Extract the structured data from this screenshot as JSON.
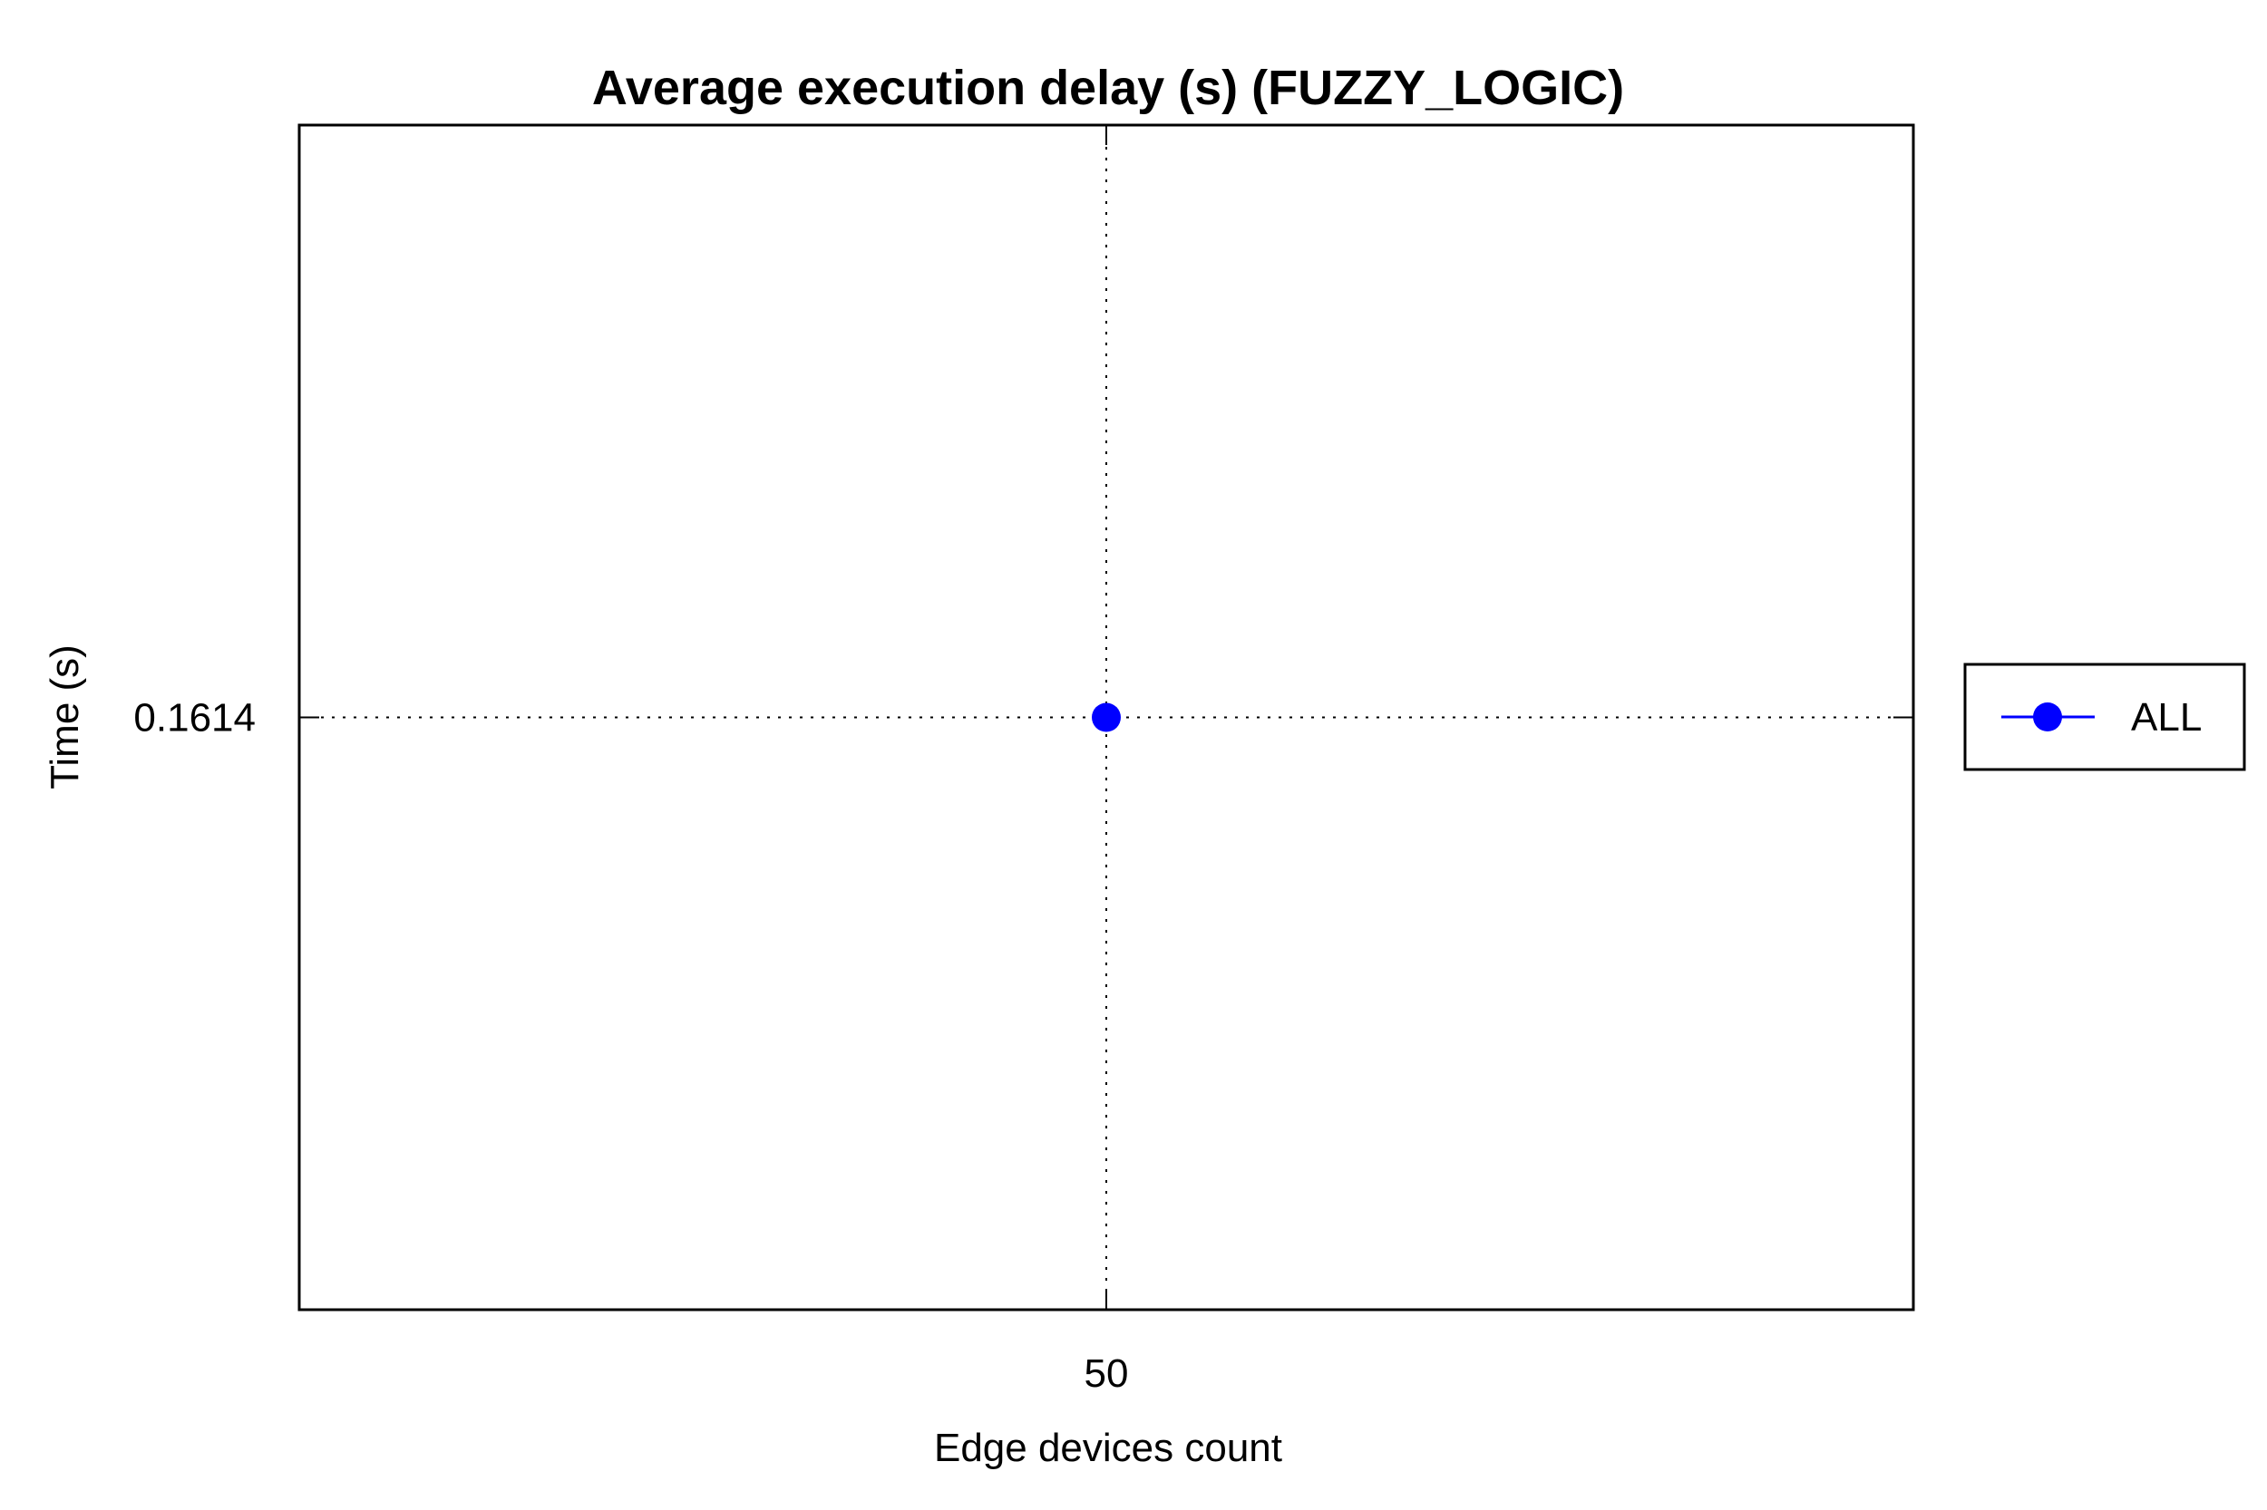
{
  "chart_data": {
    "type": "line",
    "title": "Average execution delay (s) (FUZZY_LOGIC)",
    "xlabel": "Edge devices count",
    "ylabel": "Time (s)",
    "x_ticks": [
      "50"
    ],
    "y_ticks": [
      "0.1614"
    ],
    "grid": true,
    "grid_style": "dotted",
    "legend_position": "right",
    "series": [
      {
        "name": "ALL",
        "color": "#0000ff",
        "marker": "circle",
        "x": [
          50
        ],
        "y": [
          0.1614
        ]
      }
    ]
  }
}
